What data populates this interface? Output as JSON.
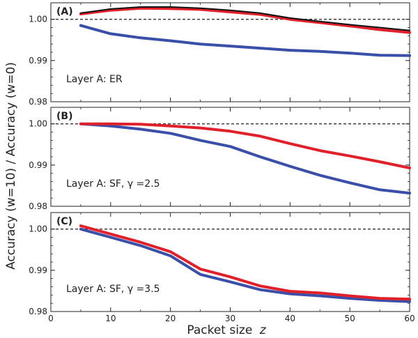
{
  "chart_data": {
    "type": "line",
    "xlabel": "Packet size",
    "xlabel_var": "z",
    "ylabel": "Accuracy (w=10) / Accuracy (w=0)",
    "xlim": [
      0,
      60
    ],
    "xticks": [
      "0",
      "10",
      "20",
      "30",
      "40",
      "50",
      "60"
    ],
    "yticks": [
      "0.98",
      "0.99",
      "1.00"
    ],
    "reference_line": 1.0,
    "panels": [
      {
        "tag": "(A)",
        "note": "Layer A: ER",
        "ylim": [
          0.98,
          1.0035
        ],
        "x": [
          5,
          10,
          15,
          20,
          25,
          30,
          35,
          40,
          45,
          50,
          55,
          60
        ],
        "series": [
          {
            "name": "black",
            "color": "#111111",
            "values": [
              1.0015,
              1.0025,
              1.003,
              1.003,
              1.0027,
              1.0022,
              1.0015,
              1.0003,
              0.9995,
              0.9987,
              0.998,
              0.9973
            ]
          },
          {
            "name": "red",
            "color": "#e0202a",
            "values": [
              1.0013,
              1.0022,
              1.0027,
              1.0026,
              1.0024,
              1.0018,
              1.0012,
              1.0,
              0.9992,
              0.9984,
              0.9975,
              0.9968
            ]
          },
          {
            "name": "blue",
            "color": "#3a4fa8",
            "values": [
              0.9985,
              0.9965,
              0.9955,
              0.9948,
              0.994,
              0.9935,
              0.993,
              0.9925,
              0.9922,
              0.9918,
              0.9913,
              0.9912
            ]
          }
        ]
      },
      {
        "tag": "(B)",
        "note": "Layer A: SF, γ =2.5",
        "ylim": [
          0.98,
          1.0035
        ],
        "x": [
          5,
          10,
          15,
          20,
          25,
          30,
          35,
          40,
          45,
          50,
          55,
          60
        ],
        "series": [
          {
            "name": "red",
            "color": "#e0202a",
            "values": [
              1.0,
              1.0,
              0.9999,
              0.9995,
              0.999,
              0.9982,
              0.997,
              0.9952,
              0.9935,
              0.9922,
              0.9908,
              0.9893
            ]
          },
          {
            "name": "blue",
            "color": "#3a4fa8",
            "values": [
              1.0,
              0.9995,
              0.9987,
              0.9977,
              0.996,
              0.9945,
              0.992,
              0.9897,
              0.9875,
              0.9857,
              0.984,
              0.9832
            ]
          }
        ]
      },
      {
        "tag": "(C)",
        "note": "Layer A: SF, γ =3.5",
        "ylim": [
          0.98,
          1.0035
        ],
        "x": [
          5,
          10,
          15,
          20,
          25,
          30,
          35,
          40,
          45,
          50,
          55,
          60
        ],
        "series": [
          {
            "name": "red",
            "color": "#e0202a",
            "values": [
              1.0008,
              0.9988,
              0.9968,
              0.9945,
              0.9903,
              0.9884,
              0.9862,
              0.9849,
              0.9845,
              0.9838,
              0.9832,
              0.983
            ]
          },
          {
            "name": "blue",
            "color": "#3a4fa8",
            "values": [
              1.0,
              0.998,
              0.996,
              0.9935,
              0.989,
              0.9872,
              0.9853,
              0.9843,
              0.9838,
              0.9832,
              0.9827,
              0.9824
            ]
          }
        ]
      }
    ]
  }
}
